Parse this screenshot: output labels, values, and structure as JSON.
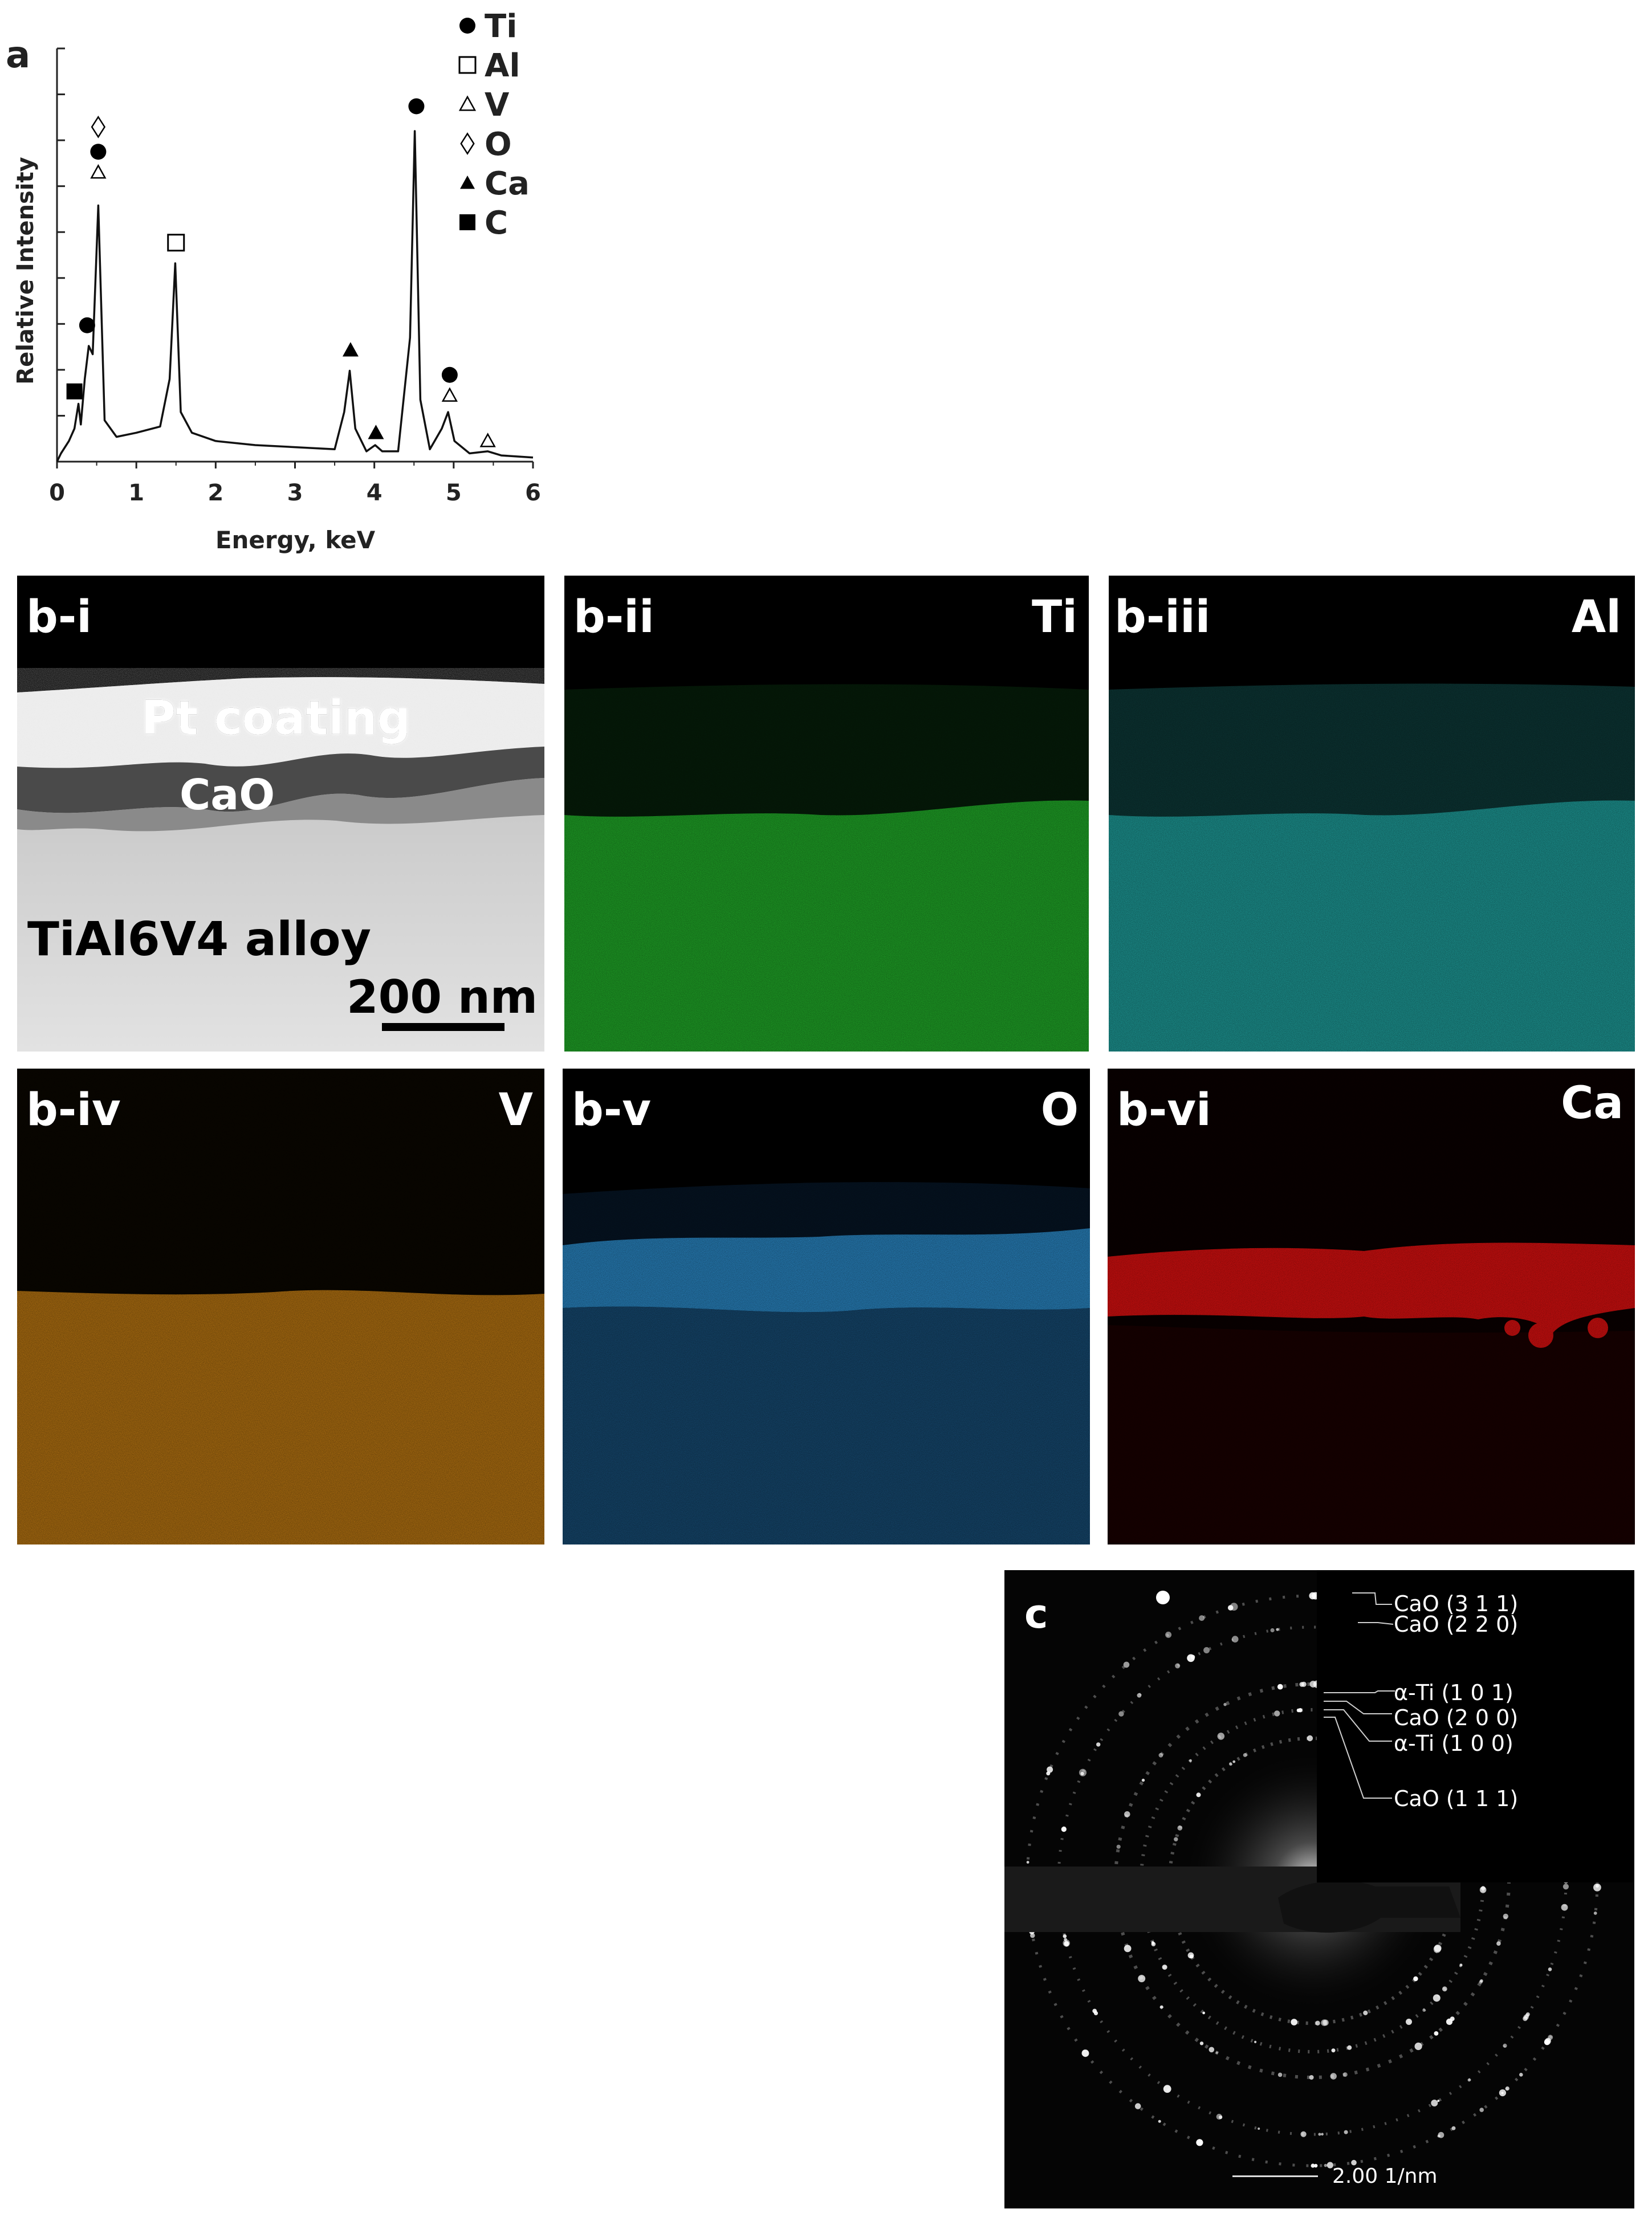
{
  "panel_a": {
    "label": "a",
    "legend": [
      {
        "symbol": "filled-circle",
        "text": "Ti"
      },
      {
        "symbol": "open-square",
        "text": "Al"
      },
      {
        "symbol": "open-triangle",
        "text": "V"
      },
      {
        "symbol": "open-diamond",
        "text": "O"
      },
      {
        "symbol": "filled-triangle",
        "text": "Ca"
      },
      {
        "symbol": "filled-square",
        "text": "C"
      }
    ]
  },
  "chart_data": {
    "type": "line",
    "title": "",
    "xlabel": "Energy, keV",
    "ylabel": "Relative Intensity",
    "xlim": [
      0,
      6
    ],
    "ylim": [
      0,
      1
    ],
    "xticks": [
      "0",
      "1",
      "2",
      "3",
      "4",
      "5",
      "6"
    ],
    "grid": false,
    "legend_position": "top-right",
    "series": [
      {
        "x": [
          0.0,
          0.05,
          0.15,
          0.22,
          0.27,
          0.3,
          0.35,
          0.4,
          0.45,
          0.52,
          0.6,
          0.75,
          1.0,
          1.3,
          1.42,
          1.49,
          1.56,
          1.7,
          2.0,
          2.5,
          3.0,
          3.5,
          3.62,
          3.69,
          3.76,
          3.9,
          4.01,
          4.1,
          4.3,
          4.45,
          4.51,
          4.58,
          4.7,
          4.85,
          4.93,
          5.01,
          5.2,
          5.43,
          5.6,
          6.0
        ],
        "y": [
          0.0,
          0.02,
          0.05,
          0.08,
          0.14,
          0.09,
          0.2,
          0.28,
          0.26,
          0.62,
          0.1,
          0.06,
          0.07,
          0.085,
          0.2,
          0.48,
          0.12,
          0.07,
          0.05,
          0.04,
          0.035,
          0.03,
          0.12,
          0.22,
          0.08,
          0.025,
          0.04,
          0.025,
          0.025,
          0.3,
          0.8,
          0.15,
          0.03,
          0.08,
          0.12,
          0.05,
          0.02,
          0.025,
          0.015,
          0.01
        ]
      }
    ],
    "peak_markers": [
      {
        "x": 0.22,
        "y": 0.17,
        "symbol": "filled-square",
        "element": "C"
      },
      {
        "x": 0.38,
        "y": 0.33,
        "symbol": "filled-circle",
        "element": "Ti"
      },
      {
        "x": 0.52,
        "y": 0.7,
        "symbol": "open-triangle",
        "element": "V"
      },
      {
        "x": 0.52,
        "y": 0.75,
        "symbol": "filled-circle",
        "element": "Ti"
      },
      {
        "x": 0.52,
        "y": 0.81,
        "symbol": "open-diamond",
        "element": "O"
      },
      {
        "x": 1.5,
        "y": 0.53,
        "symbol": "open-square",
        "element": "Al"
      },
      {
        "x": 3.7,
        "y": 0.27,
        "symbol": "filled-triangle",
        "element": "Ca"
      },
      {
        "x": 4.02,
        "y": 0.07,
        "symbol": "filled-triangle",
        "element": "Ca"
      },
      {
        "x": 4.53,
        "y": 0.86,
        "symbol": "filled-circle",
        "element": "Ti"
      },
      {
        "x": 4.95,
        "y": 0.16,
        "symbol": "open-triangle",
        "element": "V"
      },
      {
        "x": 4.95,
        "y": 0.21,
        "symbol": "filled-circle",
        "element": "Ti"
      },
      {
        "x": 5.43,
        "y": 0.05,
        "symbol": "open-triangle",
        "element": "V"
      }
    ]
  },
  "panels_b": [
    {
      "id": "b-i",
      "label": "b-i",
      "element": "",
      "color": "#d9d9d9"
    },
    {
      "id": "b-ii",
      "label": "b-ii",
      "element": "Ti",
      "color": "#22b22a"
    },
    {
      "id": "b-iii",
      "label": "b-iii",
      "element": "Al",
      "color": "#1fa3a0"
    },
    {
      "id": "b-iv",
      "label": "b-iv",
      "element": "V",
      "color": "#c07a12"
    },
    {
      "id": "b-v",
      "label": "b-v",
      "element": "O",
      "color": "#1f78b4"
    },
    {
      "id": "b-vi",
      "label": "b-vi",
      "element": "Ca",
      "color": "#e01010"
    }
  ],
  "panel_bi": {
    "pt_coating": "Pt coating",
    "cao": "CaO",
    "alloy": "TiAl6V4 alloy",
    "scale": "200 nm"
  },
  "panel_c": {
    "label": "c",
    "rings": [
      {
        "label": "CaO (3 1 1)"
      },
      {
        "label": "CaO (2 2 0)"
      },
      {
        "label": "α-Ti (1 0 1)"
      },
      {
        "label": "CaO (2 0 0)"
      },
      {
        "label": "α-Ti (1 0 0)"
      },
      {
        "label": "CaO (1 1 1)"
      }
    ],
    "scale": "2.00 1/nm"
  }
}
